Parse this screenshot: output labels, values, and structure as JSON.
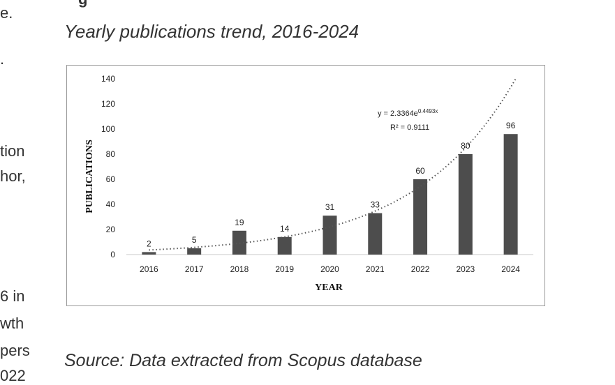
{
  "left_text_fragments": [
    "e.",
    ".",
    "tion",
    "hor,",
    "6 in",
    "wth",
    "pers",
    "022"
  ],
  "figure": {
    "heading_fragment": "g",
    "caption": "Yearly publications trend, 2016-2024",
    "source": "Source: Data extracted from Scopus database"
  },
  "chart_data": {
    "type": "bar",
    "title": "",
    "categories": [
      "2016",
      "2017",
      "2018",
      "2019",
      "2020",
      "2021",
      "2022",
      "2023",
      "2024"
    ],
    "values": [
      2,
      5,
      19,
      14,
      31,
      33,
      60,
      80,
      96
    ],
    "xlabel": "YEAR",
    "ylabel": "PUBLICATIONS",
    "ylim": [
      0,
      140
    ],
    "yticks": [
      0,
      20,
      40,
      60,
      80,
      100,
      120,
      140
    ],
    "grid": false,
    "bar_color": "#4d4d4d",
    "trendline": {
      "type": "exponential",
      "style": "dotted",
      "a": 2.3364,
      "b": 0.4493,
      "equation_prefix": "y = 2.3364e",
      "equation_exponent": "0.4493x",
      "r_squared": "R² = 0.9111"
    }
  }
}
